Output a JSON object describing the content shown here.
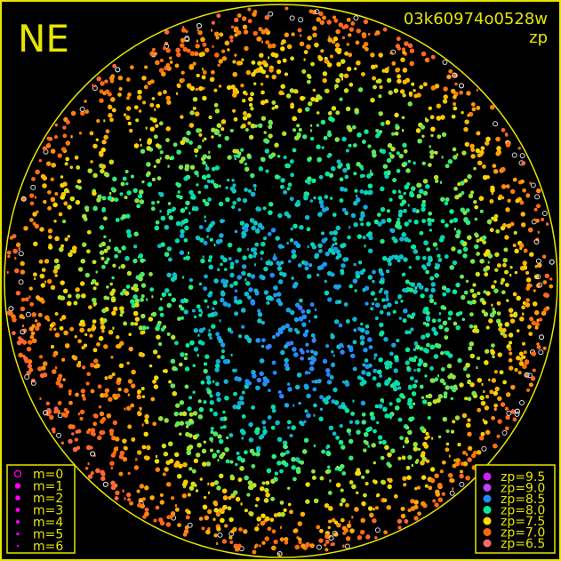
{
  "chart_data": {
    "type": "scatter",
    "title": "03k60974o0528w",
    "subtitle": "zp",
    "corner_label": "NE",
    "frame_color": "#e6e600",
    "background": "#000000",
    "size_legend": {
      "position": "bottom-left",
      "entries": [
        {
          "label": "m=0",
          "style": "open"
        },
        {
          "label": "m=1",
          "style": "filled"
        },
        {
          "label": "m=2",
          "style": "filled"
        },
        {
          "label": "m=3",
          "style": "filled"
        },
        {
          "label": "m=4",
          "style": "filled"
        },
        {
          "label": "m=5",
          "style": "filled"
        },
        {
          "label": "m=6",
          "style": "filled"
        }
      ],
      "color": "#ff00ff"
    },
    "color_legend": {
      "position": "bottom-right",
      "entries": [
        {
          "label": "zp=9.5",
          "value": 9.5,
          "color": "#cc22ff"
        },
        {
          "label": "zp=9.0",
          "value": 9.0,
          "color": "#bb44ee"
        },
        {
          "label": "zp=8.5",
          "value": 8.5,
          "color": "#2288ff"
        },
        {
          "label": "zp=8.0",
          "value": 8.0,
          "color": "#00ee99"
        },
        {
          "label": "zp=7.5",
          "value": 7.5,
          "color": "#ffdd00"
        },
        {
          "label": "zp=7.0",
          "value": 7.0,
          "color": "#ff6611"
        },
        {
          "label": "zp=6.5",
          "value": 6.5,
          "color": "#ff6666"
        }
      ]
    }
  }
}
